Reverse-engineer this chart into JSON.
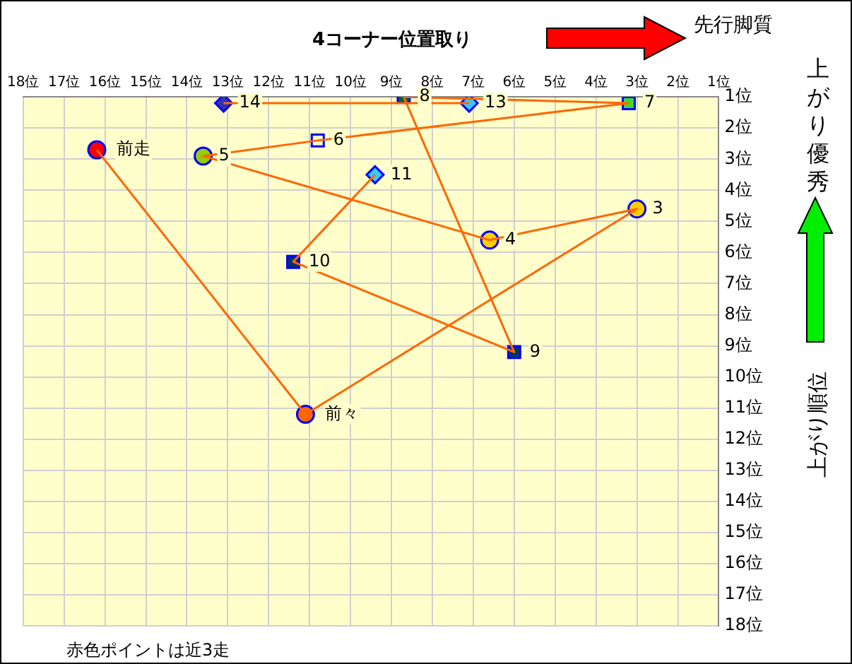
{
  "chart_data": {
    "type": "scatter",
    "title": "4コーナー位置取り",
    "ylabel": "上がり順位",
    "annotations": [
      "先行脚質",
      "上がり優秀",
      "赤色ポイントは近3走",
      {
        "text": "前走",
        "x": 16.2,
        "y": 2.7
      },
      {
        "text": "前々",
        "x": 11.1,
        "y": 11.2
      },
      {
        "text": "3",
        "x": 3.0,
        "y": 4.6
      },
      {
        "text": "4",
        "x": 6.6,
        "y": 5.6
      },
      {
        "text": "5",
        "x": 13.6,
        "y": 2.9
      },
      {
        "text": "6",
        "x": 10.8,
        "y": 2.4
      },
      {
        "text": "7",
        "x": 3.2,
        "y": 1.2
      },
      {
        "text": "8",
        "x": 8.7,
        "y": 1.0
      },
      {
        "text": "9",
        "x": 6.0,
        "y": 9.2
      },
      {
        "text": "10",
        "x": 11.4,
        "y": 6.3
      },
      {
        "text": "11",
        "x": 9.4,
        "y": 3.5
      },
      {
        "text": "13",
        "x": 7.1,
        "y": 1.2
      },
      {
        "text": "14",
        "x": 13.1,
        "y": 1.2
      }
    ],
    "series": [
      {
        "type": "line",
        "color": "#ff6600",
        "marker": "none",
        "x": [
          16.2,
          11.1,
          3.0,
          6.6,
          13.6,
          10.8,
          3.2,
          8.7,
          6.0,
          11.4,
          9.4,
          null,
          7.1,
          13.1
        ],
        "values": [
          2.7,
          11.2,
          4.6,
          5.6,
          2.9,
          2.4,
          1.2,
          1.0,
          9.2,
          6.3,
          3.5,
          null,
          1.2,
          1.2
        ]
      },
      {
        "marker": "circle",
        "x": [
          16.2,
          11.1,
          3.0,
          6.6,
          13.6
        ],
        "values": [
          2.7,
          11.2,
          4.6,
          5.6,
          2.9
        ],
        "colors": [
          "#ff0000",
          "#ff6600",
          "#ffcc00",
          "#ffcc00",
          "#99cc00"
        ]
      },
      {
        "marker": "square",
        "x": [
          10.8,
          3.2,
          8.7,
          6.0,
          11.4
        ],
        "values": [
          2.4,
          1.2,
          1.0,
          9.2,
          6.3
        ],
        "colors": [
          "#ffffcc",
          "#33dd33",
          "#006633",
          "#003366",
          "#003366"
        ]
      },
      {
        "marker": "diamond",
        "x": [
          9.4,
          7.1,
          13.1
        ],
        "values": [
          3.5,
          1.2,
          1.2
        ],
        "colors": [
          "#33ccff",
          "#33ccff",
          "#3333aa"
        ]
      }
    ],
    "xlim": [
      18,
      1
    ],
    "ylim": [
      18,
      1
    ],
    "xticks": [
      {
        "value": 18,
        "label": "18位"
      },
      {
        "value": 17,
        "label": "17位"
      },
      {
        "value": 16,
        "label": "16位"
      },
      {
        "value": 15,
        "label": "15位"
      },
      {
        "value": 14,
        "label": "14位"
      },
      {
        "value": 13,
        "label": "13位"
      },
      {
        "value": 12,
        "label": "12位"
      },
      {
        "value": 11,
        "label": "11位"
      },
      {
        "value": 10,
        "label": "10位"
      },
      {
        "value": 9,
        "label": "9位"
      },
      {
        "value": 8,
        "label": "8位"
      },
      {
        "value": 7,
        "label": "7位"
      },
      {
        "value": 6,
        "label": "6位"
      },
      {
        "value": 5,
        "label": "5位"
      },
      {
        "value": 4,
        "label": "4位"
      },
      {
        "value": 3,
        "label": "3位"
      },
      {
        "value": 2,
        "label": "2位"
      },
      {
        "value": 1,
        "label": "1位"
      }
    ],
    "yticks": [
      {
        "value": 1,
        "label": "1位"
      },
      {
        "value": 2,
        "label": "2位"
      },
      {
        "value": 3,
        "label": "3位"
      },
      {
        "value": 4,
        "label": "4位"
      },
      {
        "value": 5,
        "label": "5位"
      },
      {
        "value": 6,
        "label": "6位"
      },
      {
        "value": 7,
        "label": "7位"
      },
      {
        "value": 8,
        "label": "8位"
      },
      {
        "value": 9,
        "label": "9位"
      },
      {
        "value": 10,
        "label": "10位"
      },
      {
        "value": 11,
        "label": "11位"
      },
      {
        "value": 12,
        "label": "12位"
      },
      {
        "value": 13,
        "label": "13位"
      },
      {
        "value": 14,
        "label": "14位"
      },
      {
        "value": 15,
        "label": "15位"
      },
      {
        "value": 16,
        "label": "16位"
      },
      {
        "value": 17,
        "label": "17位"
      },
      {
        "value": 18,
        "label": "18位"
      }
    ],
    "grid": true,
    "legend": false
  }
}
